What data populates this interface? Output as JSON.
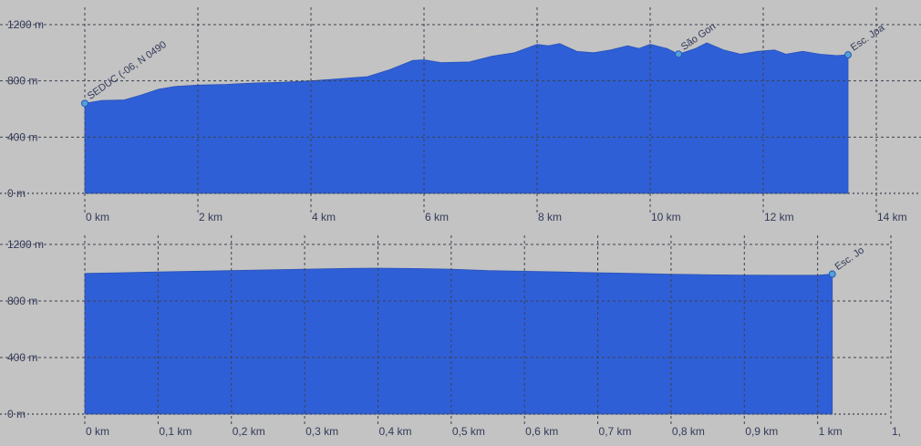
{
  "chart_data": [
    {
      "type": "area",
      "title": "",
      "xlabel": "",
      "ylabel": "",
      "x_unit": "km",
      "y_unit": "m",
      "xlim": [
        0,
        14
      ],
      "ylim": [
        0,
        1200
      ],
      "x_ticks": [
        0,
        2,
        4,
        6,
        8,
        10,
        12,
        14
      ],
      "x_tick_labels": [
        "0 km",
        "2 km",
        "4 km",
        "6 km",
        "8 km",
        "10 km",
        "12 km",
        "14 km"
      ],
      "y_ticks": [
        0,
        400,
        800,
        1200
      ],
      "y_tick_labels": [
        "0 m",
        "400 m",
        "800 m",
        "1200 m"
      ],
      "grid": true,
      "fill_color": "#2f5fd6",
      "marker_color": "#4fa3d8",
      "series": [
        {
          "x": [
            0,
            0.3,
            0.7,
            1.0,
            1.3,
            1.6,
            2.0,
            2.5,
            3.0,
            3.5,
            4.0,
            4.5,
            5.0,
            5.4,
            5.8,
            6.0,
            6.3,
            6.8,
            7.2,
            7.6,
            8.0,
            8.2,
            8.4,
            8.7,
            9.0,
            9.3,
            9.6,
            9.8,
            10.0,
            10.3,
            10.5,
            10.8,
            11.0,
            11.3,
            11.6,
            11.9,
            12.2,
            12.4,
            12.7,
            13.0,
            13.3,
            13.5
          ],
          "values": [
            640,
            660,
            665,
            700,
            740,
            760,
            770,
            775,
            785,
            790,
            800,
            815,
            830,
            880,
            945,
            950,
            930,
            935,
            975,
            1000,
            1060,
            1050,
            1065,
            1010,
            1000,
            1020,
            1050,
            1030,
            1060,
            1030,
            990,
            1030,
            1070,
            1020,
            990,
            1010,
            1020,
            990,
            1010,
            990,
            980,
            985
          ]
        }
      ],
      "waypoints": [
        {
          "x": 0,
          "y": 640,
          "label": "SEDUC (-06, N 0490"
        },
        {
          "x": 10.5,
          "y": 990,
          "label": "São Gon"
        },
        {
          "x": 13.5,
          "y": 985,
          "label": "Esc. Joa"
        }
      ]
    },
    {
      "type": "area",
      "title": "",
      "xlabel": "",
      "ylabel": "",
      "x_unit": "km",
      "y_unit": "m",
      "xlim": [
        0,
        1.1
      ],
      "ylim": [
        0,
        1200
      ],
      "x_ticks": [
        0,
        0.1,
        0.2,
        0.3,
        0.4,
        0.5,
        0.6,
        0.7,
        0.8,
        0.9,
        1.0,
        1.1
      ],
      "x_tick_labels": [
        "0 km",
        "0,1 km",
        "0,2 km",
        "0,3 km",
        "0,4 km",
        "0,5 km",
        "0,6 km",
        "0,7 km",
        "0,8 km",
        "0,9 km",
        "1 km",
        "1,"
      ],
      "y_ticks": [
        0,
        400,
        800,
        1200
      ],
      "y_tick_labels": [
        "0 m",
        "400 m",
        "800 m",
        "1200 m"
      ],
      "grid": true,
      "fill_color": "#2f5fd6",
      "marker_color": "#4fa3d8",
      "series": [
        {
          "x": [
            0,
            0.05,
            0.1,
            0.15,
            0.2,
            0.25,
            0.3,
            0.35,
            0.4,
            0.45,
            0.5,
            0.55,
            0.6,
            0.65,
            0.7,
            0.75,
            0.8,
            0.85,
            0.9,
            0.95,
            1.0,
            1.02
          ],
          "values": [
            995,
            1000,
            1005,
            1010,
            1015,
            1020,
            1025,
            1030,
            1032,
            1030,
            1025,
            1015,
            1010,
            1005,
            1000,
            995,
            990,
            985,
            983,
            982,
            982,
            990
          ]
        }
      ],
      "waypoints": [
        {
          "x": 1.02,
          "y": 990,
          "label": "Esc. Jo"
        }
      ]
    }
  ]
}
